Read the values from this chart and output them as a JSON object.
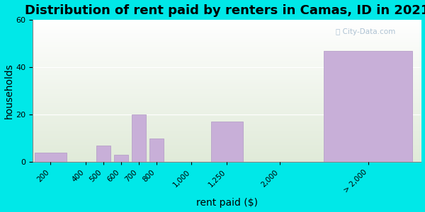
{
  "title": "Distribution of rent paid by renters in Camas, ID in 2021",
  "xlabel": "rent paid ($)",
  "ylabel": "households",
  "categories": [
    "200",
    "400",
    "500",
    "600",
    "700",
    "800",
    "1,000",
    "1,250",
    "2,000",
    "> 2,000"
  ],
  "values": [
    4,
    0,
    7,
    3,
    20,
    10,
    0,
    17,
    0,
    47
  ],
  "bar_color": "#c8afd8",
  "bar_edge_color": "#b098c4",
  "ylim": [
    0,
    60
  ],
  "yticks": [
    0,
    20,
    40,
    60
  ],
  "background_color": "#00e8e8",
  "title_fontsize": 13,
  "axis_label_fontsize": 10,
  "watermark": "City-Data.com"
}
